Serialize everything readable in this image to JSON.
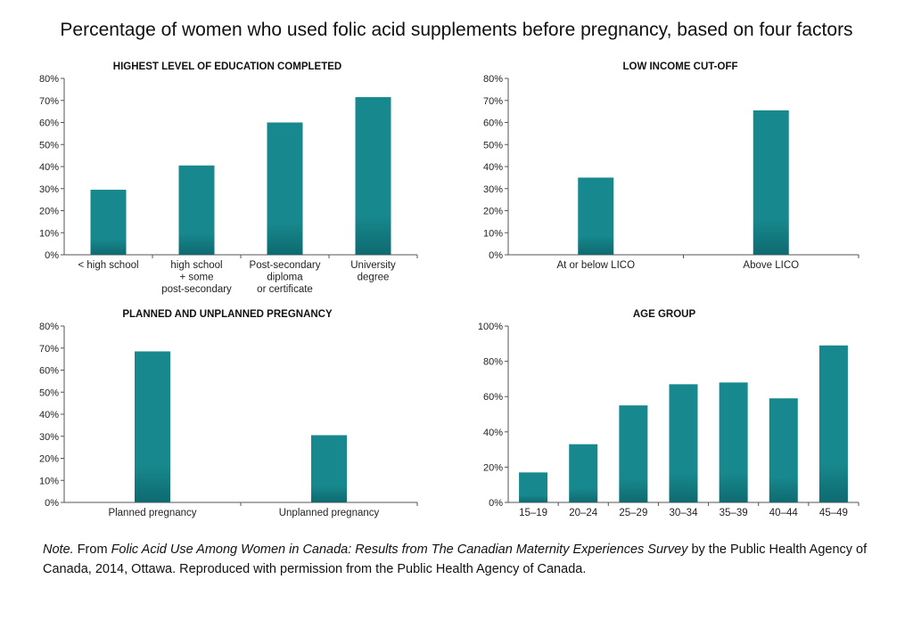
{
  "title": "Percentage of women who used folic acid supplements before pregnancy, based on four factors",
  "colors": {
    "bar_top": "#17898e",
    "bar_bottom": "#0e6a70",
    "axis": "#555555"
  },
  "chart_data": [
    {
      "type": "bar",
      "title": "HIGHEST LEVEL OF EDUCATION COMPLETED",
      "categories": [
        [
          "< high school"
        ],
        [
          "high school",
          "+ some",
          "post-secondary"
        ],
        [
          "Post-secondary",
          "diploma",
          "or certificate"
        ],
        [
          "University",
          "degree"
        ]
      ],
      "values": [
        29.5,
        40.5,
        60,
        71.5
      ],
      "ylim": [
        0,
        80
      ],
      "yticks": [
        0,
        10,
        20,
        30,
        40,
        50,
        60,
        70,
        80
      ],
      "ytick_labels": [
        "0%",
        "10%",
        "20%",
        "30%",
        "40%",
        "50%",
        "60%",
        "70%",
        "80%"
      ],
      "xlabel": "",
      "ylabel": ""
    },
    {
      "type": "bar",
      "title": "LOW INCOME CUT-OFF",
      "categories": [
        [
          "At or below LICO"
        ],
        [
          "Above LICO"
        ]
      ],
      "values": [
        35,
        65.5
      ],
      "ylim": [
        0,
        80
      ],
      "yticks": [
        0,
        10,
        20,
        30,
        40,
        50,
        60,
        70,
        80
      ],
      "ytick_labels": [
        "0%",
        "10%",
        "20%",
        "30%",
        "40%",
        "50%",
        "60%",
        "70%",
        "80%"
      ],
      "xlabel": "",
      "ylabel": ""
    },
    {
      "type": "bar",
      "title": "PLANNED AND UNPLANNED PREGNANCY",
      "categories": [
        [
          "Planned pregnancy"
        ],
        [
          "Unplanned pregnancy"
        ]
      ],
      "values": [
        68.5,
        30.5
      ],
      "ylim": [
        0,
        80
      ],
      "yticks": [
        0,
        10,
        20,
        30,
        40,
        50,
        60,
        70,
        80
      ],
      "ytick_labels": [
        "0%",
        "10%",
        "20%",
        "30%",
        "40%",
        "50%",
        "60%",
        "70%",
        "80%"
      ],
      "xlabel": "",
      "ylabel": ""
    },
    {
      "type": "bar",
      "title": "AGE GROUP",
      "categories": [
        [
          "15–19"
        ],
        [
          "20–24"
        ],
        [
          "25–29"
        ],
        [
          "30–34"
        ],
        [
          "35–39"
        ],
        [
          "40–44"
        ],
        [
          "45–49"
        ]
      ],
      "values": [
        17,
        33,
        55,
        67,
        68,
        59,
        89
      ],
      "ylim": [
        0,
        100
      ],
      "yticks": [
        0,
        20,
        40,
        60,
        80,
        100
      ],
      "ytick_labels": [
        "0%",
        "20%",
        "40%",
        "60%",
        "80%",
        "100%"
      ],
      "xlabel": "",
      "ylabel": ""
    }
  ],
  "note": {
    "label": "Note.",
    "text_before": " From ",
    "source_title": "Folic Acid Use Among Women in Canada: Results from The Canadian Maternity Experiences Survey",
    "text_after": " by the Public Health Agency of Canada, 2014, Ottawa. Reproduced with permission from the Public Health Agency of Canada."
  }
}
